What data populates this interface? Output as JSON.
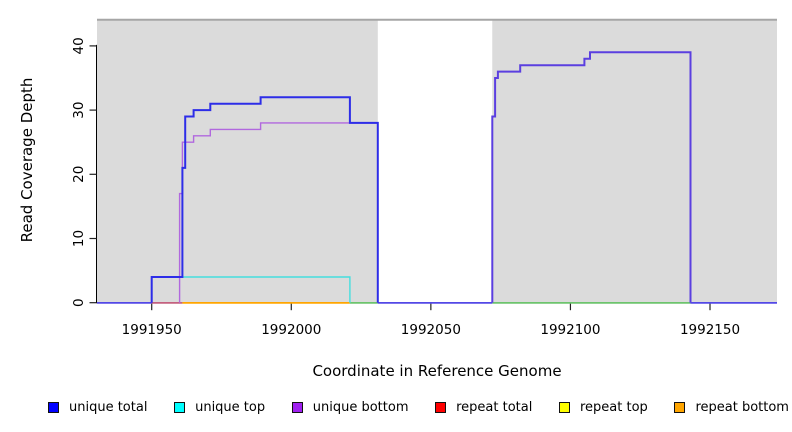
{
  "chart_data": {
    "type": "line",
    "subtype": "step-coverage",
    "title": "",
    "xlabel": "Coordinate in Reference Genome",
    "ylabel": "Read Coverage Depth",
    "xlim": [
      1991930.4,
      1992174
    ],
    "ylim": [
      0,
      44
    ],
    "x_ticks": [
      1991950,
      1992000,
      1992050,
      1992100,
      1992150
    ],
    "y_ticks": [
      0,
      10,
      20,
      30,
      40
    ],
    "grid": false,
    "legend_position": "bottom",
    "plot_background": "#ffffff",
    "shading": {
      "fill": "#DBDBDB",
      "top_border_color": "#A6A6A6",
      "regions": [
        {
          "x0": 1991930.4,
          "x1": 1992031
        },
        {
          "x0": 1992072,
          "x1": 1992174
        }
      ]
    },
    "series": [
      {
        "name": "unique top",
        "color": "#45DEDE",
        "width": 1.4,
        "points": [
          [
            1991950,
            4
          ],
          [
            1992021,
            4
          ],
          [
            1992021,
            0
          ]
        ]
      },
      {
        "name": "unique bottom",
        "color": "#B168DE",
        "width": 1.4,
        "points": [
          [
            1991960,
            0
          ],
          [
            1991960,
            17
          ],
          [
            1991961,
            17
          ],
          [
            1991961,
            25
          ],
          [
            1991965,
            25
          ],
          [
            1991965,
            26
          ],
          [
            1991971,
            26
          ],
          [
            1991971,
            27
          ],
          [
            1991989,
            27
          ],
          [
            1991989,
            28
          ],
          [
            1992031,
            28
          ],
          [
            1992031,
            0
          ]
        ]
      },
      {
        "name": "unique total (left region)",
        "color": "#2D2DE8",
        "width": 2,
        "points": [
          [
            1991950,
            0
          ],
          [
            1991950,
            4
          ],
          [
            1991961,
            4
          ],
          [
            1991961,
            21
          ],
          [
            1991962,
            21
          ],
          [
            1991962,
            29
          ],
          [
            1991965,
            29
          ],
          [
            1991965,
            30
          ],
          [
            1991971,
            30
          ],
          [
            1991971,
            31
          ],
          [
            1991989,
            31
          ],
          [
            1991989,
            32
          ],
          [
            1992021,
            32
          ],
          [
            1992021,
            28
          ],
          [
            1992031,
            28
          ],
          [
            1992031,
            0
          ]
        ]
      },
      {
        "name": "unique total over unique bottom (right region)",
        "color": "#5B3FE0",
        "width": 2,
        "points": [
          [
            1992072,
            0
          ],
          [
            1992072,
            29
          ],
          [
            1992073,
            29
          ],
          [
            1992073,
            35
          ],
          [
            1992074,
            35
          ],
          [
            1992074,
            36
          ],
          [
            1992082,
            36
          ],
          [
            1992082,
            37
          ],
          [
            1992105,
            37
          ],
          [
            1992105,
            38
          ],
          [
            1992107,
            38
          ],
          [
            1992107,
            39
          ],
          [
            1992143,
            39
          ],
          [
            1992143,
            0
          ]
        ]
      }
    ],
    "baseline_segments": [
      {
        "x0": 1991930.4,
        "x1": 1991950,
        "color": "#5348E6"
      },
      {
        "x0": 1991950,
        "x1": 1991961,
        "color": "#C4617F"
      },
      {
        "x0": 1991961,
        "x1": 1992021,
        "color": "#FFA500"
      },
      {
        "x0": 1992021,
        "x1": 1992031,
        "color": "#6DC46D"
      },
      {
        "x0": 1992031,
        "x1": 1992072,
        "color": "#5348E6"
      },
      {
        "x0": 1992072,
        "x1": 1992143,
        "color": "#6DC46D"
      },
      {
        "x0": 1992143,
        "x1": 1992174,
        "color": "#5348E6"
      }
    ],
    "legend": [
      {
        "label": "unique total",
        "color": "#0000FF"
      },
      {
        "label": "unique top",
        "color": "#00FFFF"
      },
      {
        "label": "unique bottom",
        "color": "#A020F0"
      },
      {
        "label": "repeat total",
        "color": "#FF0000"
      },
      {
        "label": "repeat top",
        "color": "#FFFF00"
      },
      {
        "label": "repeat bottom",
        "color": "#FFA500"
      }
    ]
  }
}
